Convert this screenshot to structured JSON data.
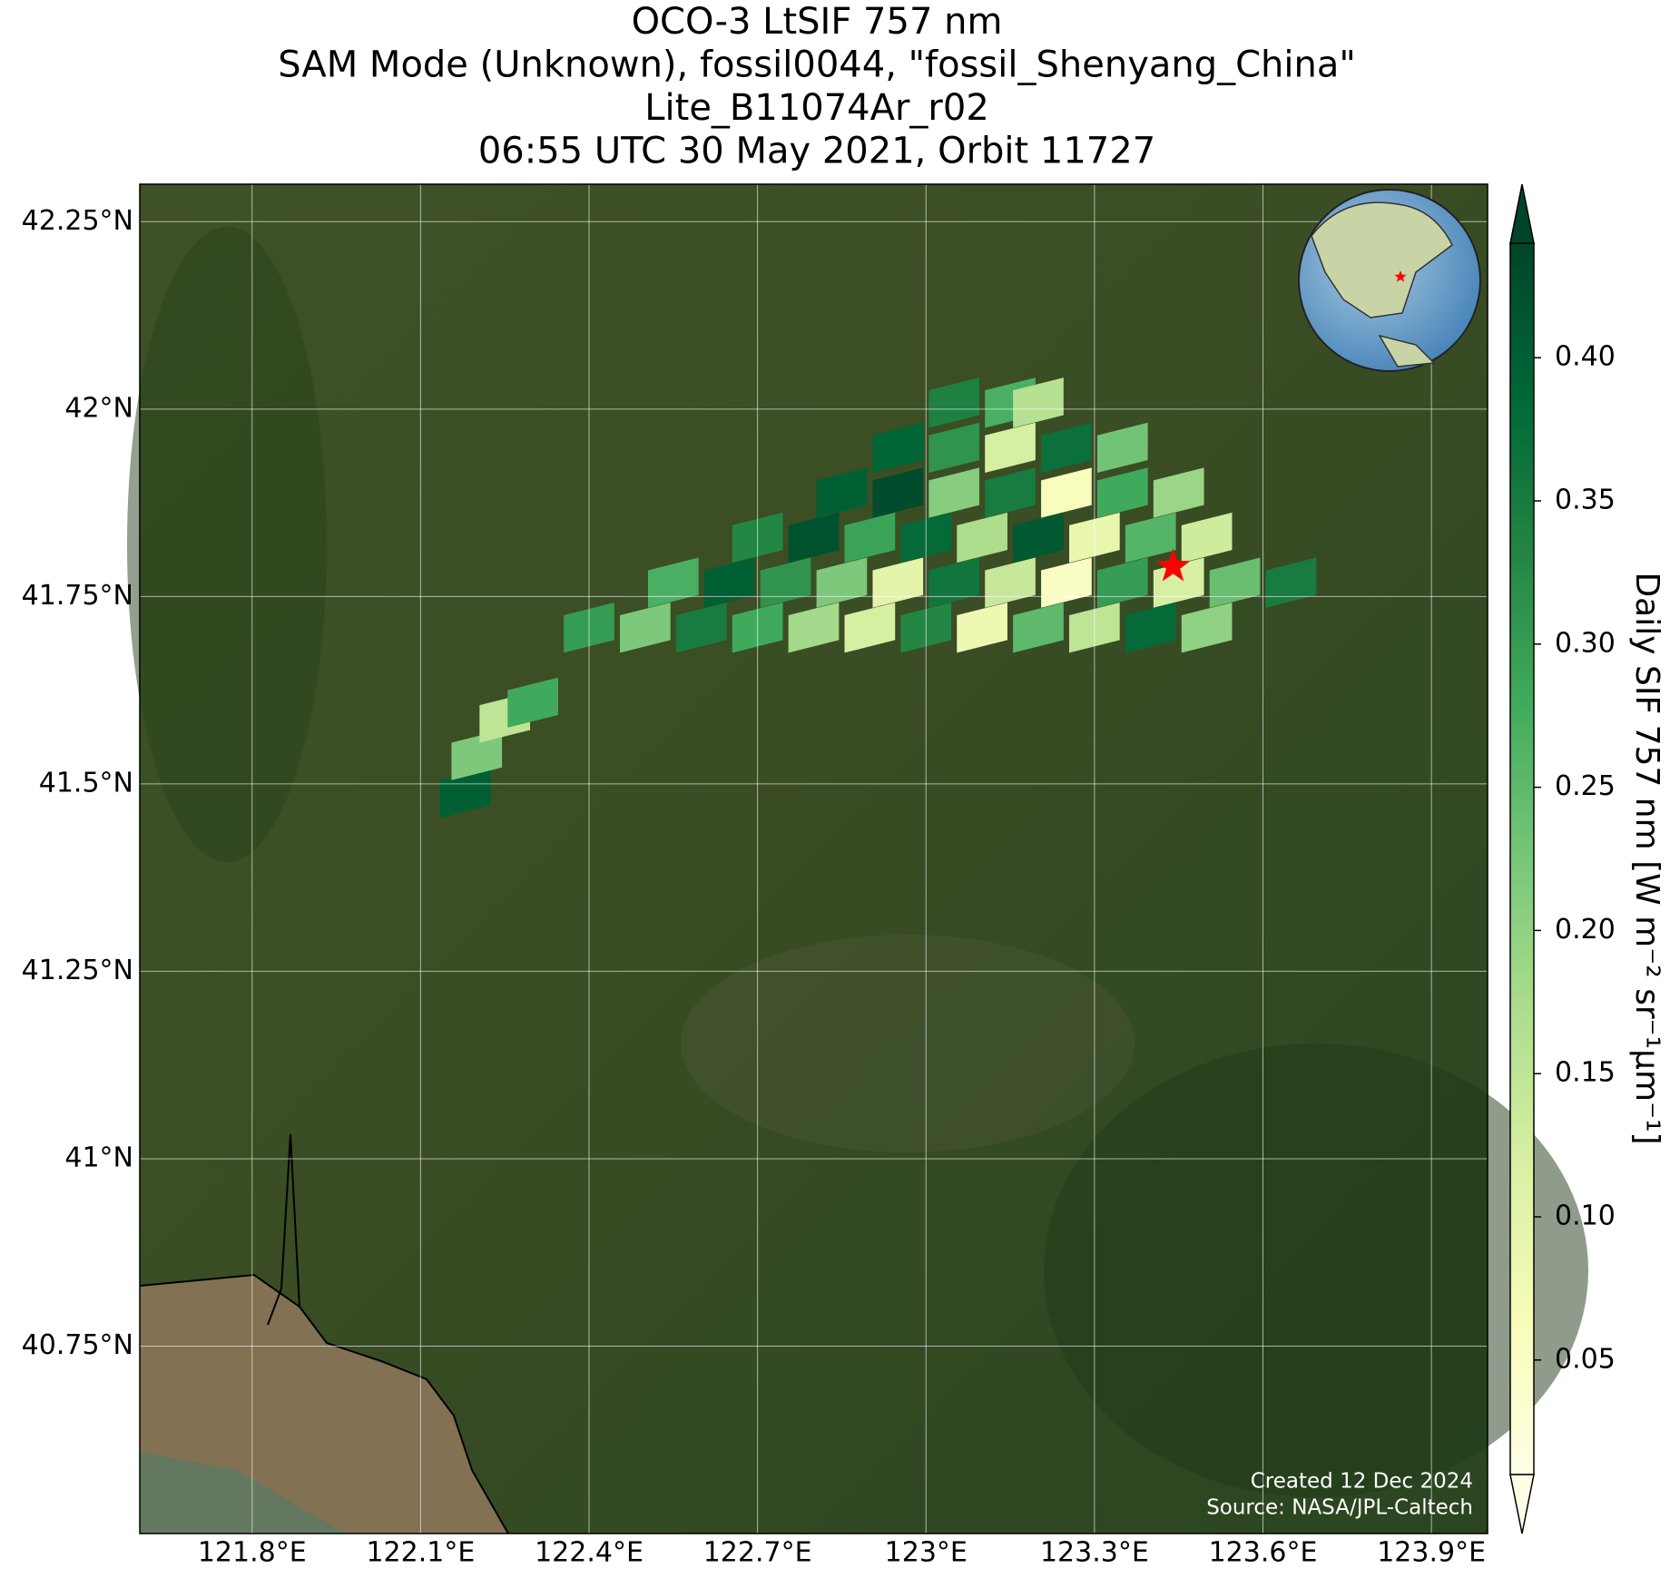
{
  "chart_data": {
    "type": "map",
    "title": [
      "OCO-3 LtSIF 757 nm",
      "SAM Mode (Unknown), fossil0044, \"fossil_Shenyang_China\"",
      "Lite_B11074Ar_r02",
      "06:55 UTC 30 May 2021, Orbit 11727"
    ],
    "xlim": [
      121.6,
      124.0
    ],
    "ylim": [
      40.5,
      42.3
    ],
    "xticks": [
      {
        "value": 121.8,
        "label": "121.8°E"
      },
      {
        "value": 122.1,
        "label": "122.1°E"
      },
      {
        "value": 122.4,
        "label": "122.4°E"
      },
      {
        "value": 122.7,
        "label": "122.7°E"
      },
      {
        "value": 123.0,
        "label": "123°E"
      },
      {
        "value": 123.3,
        "label": "123.3°E"
      },
      {
        "value": 123.6,
        "label": "123.6°E"
      },
      {
        "value": 123.9,
        "label": "123.9°E"
      }
    ],
    "yticks": [
      {
        "value": 42.25,
        "label": "42.25°N"
      },
      {
        "value": 42.0,
        "label": "42°N"
      },
      {
        "value": 41.75,
        "label": "41.75°N"
      },
      {
        "value": 41.5,
        "label": "41.5°N"
      },
      {
        "value": 41.25,
        "label": "41.25°N"
      },
      {
        "value": 41.0,
        "label": "41°N"
      },
      {
        "value": 40.75,
        "label": "40.75°N"
      }
    ],
    "grid": true,
    "colorbar": {
      "label": "Daily SIF 757 nm [W m⁻² sr⁻¹μm⁻¹]",
      "clim": [
        0.01,
        0.44
      ],
      "ticks": [
        {
          "value": 0.05,
          "label": "0.05"
        },
        {
          "value": 0.1,
          "label": "0.10"
        },
        {
          "value": 0.15,
          "label": "0.15"
        },
        {
          "value": 0.2,
          "label": "0.20"
        },
        {
          "value": 0.25,
          "label": "0.25"
        },
        {
          "value": 0.3,
          "label": "0.30"
        },
        {
          "value": 0.35,
          "label": "0.35"
        },
        {
          "value": 0.4,
          "label": "0.40"
        }
      ],
      "colormap": [
        "#ffffe5",
        "#f7fcb9",
        "#d9f0a3",
        "#addd8e",
        "#78c679",
        "#41ab5d",
        "#238443",
        "#006837",
        "#004529"
      ]
    },
    "site": {
      "lon": 123.44,
      "lat": 41.79,
      "color": "#ff0000"
    },
    "cells": [
      {
        "lon": 122.4,
        "lat": 41.7,
        "value": 0.3
      },
      {
        "lon": 122.5,
        "lat": 41.7,
        "value": 0.22
      },
      {
        "lon": 122.6,
        "lat": 41.7,
        "value": 0.35
      },
      {
        "lon": 122.7,
        "lat": 41.7,
        "value": 0.28
      },
      {
        "lon": 122.8,
        "lat": 41.7,
        "value": 0.18
      },
      {
        "lon": 122.9,
        "lat": 41.7,
        "value": 0.12
      },
      {
        "lon": 123.0,
        "lat": 41.7,
        "value": 0.33
      },
      {
        "lon": 123.1,
        "lat": 41.7,
        "value": 0.08
      },
      {
        "lon": 123.2,
        "lat": 41.7,
        "value": 0.25
      },
      {
        "lon": 123.3,
        "lat": 41.7,
        "value": 0.15
      },
      {
        "lon": 123.4,
        "lat": 41.7,
        "value": 0.38
      },
      {
        "lon": 123.5,
        "lat": 41.7,
        "value": 0.2
      },
      {
        "lon": 122.55,
        "lat": 41.76,
        "value": 0.27
      },
      {
        "lon": 122.65,
        "lat": 41.76,
        "value": 0.4
      },
      {
        "lon": 122.75,
        "lat": 41.76,
        "value": 0.31
      },
      {
        "lon": 122.85,
        "lat": 41.76,
        "value": 0.22
      },
      {
        "lon": 122.95,
        "lat": 41.76,
        "value": 0.1
      },
      {
        "lon": 123.05,
        "lat": 41.76,
        "value": 0.36
      },
      {
        "lon": 123.15,
        "lat": 41.76,
        "value": 0.14
      },
      {
        "lon": 123.25,
        "lat": 41.76,
        "value": 0.05
      },
      {
        "lon": 123.35,
        "lat": 41.76,
        "value": 0.3
      },
      {
        "lon": 123.45,
        "lat": 41.76,
        "value": 0.12
      },
      {
        "lon": 123.55,
        "lat": 41.76,
        "value": 0.24
      },
      {
        "lon": 123.65,
        "lat": 41.76,
        "value": 0.35
      },
      {
        "lon": 122.7,
        "lat": 41.82,
        "value": 0.33
      },
      {
        "lon": 122.8,
        "lat": 41.82,
        "value": 0.42
      },
      {
        "lon": 122.9,
        "lat": 41.82,
        "value": 0.29
      },
      {
        "lon": 123.0,
        "lat": 41.82,
        "value": 0.38
      },
      {
        "lon": 123.1,
        "lat": 41.82,
        "value": 0.17
      },
      {
        "lon": 123.2,
        "lat": 41.82,
        "value": 0.41
      },
      {
        "lon": 123.3,
        "lat": 41.82,
        "value": 0.09
      },
      {
        "lon": 123.4,
        "lat": 41.82,
        "value": 0.26
      },
      {
        "lon": 123.5,
        "lat": 41.82,
        "value": 0.13
      },
      {
        "lon": 122.85,
        "lat": 41.88,
        "value": 0.4
      },
      {
        "lon": 122.95,
        "lat": 41.88,
        "value": 0.43
      },
      {
        "lon": 123.05,
        "lat": 41.88,
        "value": 0.21
      },
      {
        "lon": 123.15,
        "lat": 41.88,
        "value": 0.35
      },
      {
        "lon": 123.25,
        "lat": 41.88,
        "value": 0.06
      },
      {
        "lon": 123.35,
        "lat": 41.88,
        "value": 0.28
      },
      {
        "lon": 123.45,
        "lat": 41.88,
        "value": 0.19
      },
      {
        "lon": 122.95,
        "lat": 41.94,
        "value": 0.39
      },
      {
        "lon": 123.05,
        "lat": 41.94,
        "value": 0.31
      },
      {
        "lon": 123.15,
        "lat": 41.94,
        "value": 0.12
      },
      {
        "lon": 123.25,
        "lat": 41.94,
        "value": 0.37
      },
      {
        "lon": 123.35,
        "lat": 41.94,
        "value": 0.23
      },
      {
        "lon": 123.05,
        "lat": 42.0,
        "value": 0.34
      },
      {
        "lon": 123.15,
        "lat": 42.0,
        "value": 0.27
      },
      {
        "lon": 123.2,
        "lat": 42.0,
        "value": 0.16
      },
      {
        "lon": 122.18,
        "lat": 41.48,
        "value": 0.4
      },
      {
        "lon": 122.2,
        "lat": 41.53,
        "value": 0.22
      },
      {
        "lon": 122.25,
        "lat": 41.58,
        "value": 0.15
      },
      {
        "lon": 122.3,
        "lat": 41.6,
        "value": 0.28
      }
    ],
    "credits": [
      "Created 12 Dec 2024",
      "Source: NASA/JPL-Caltech"
    ]
  }
}
